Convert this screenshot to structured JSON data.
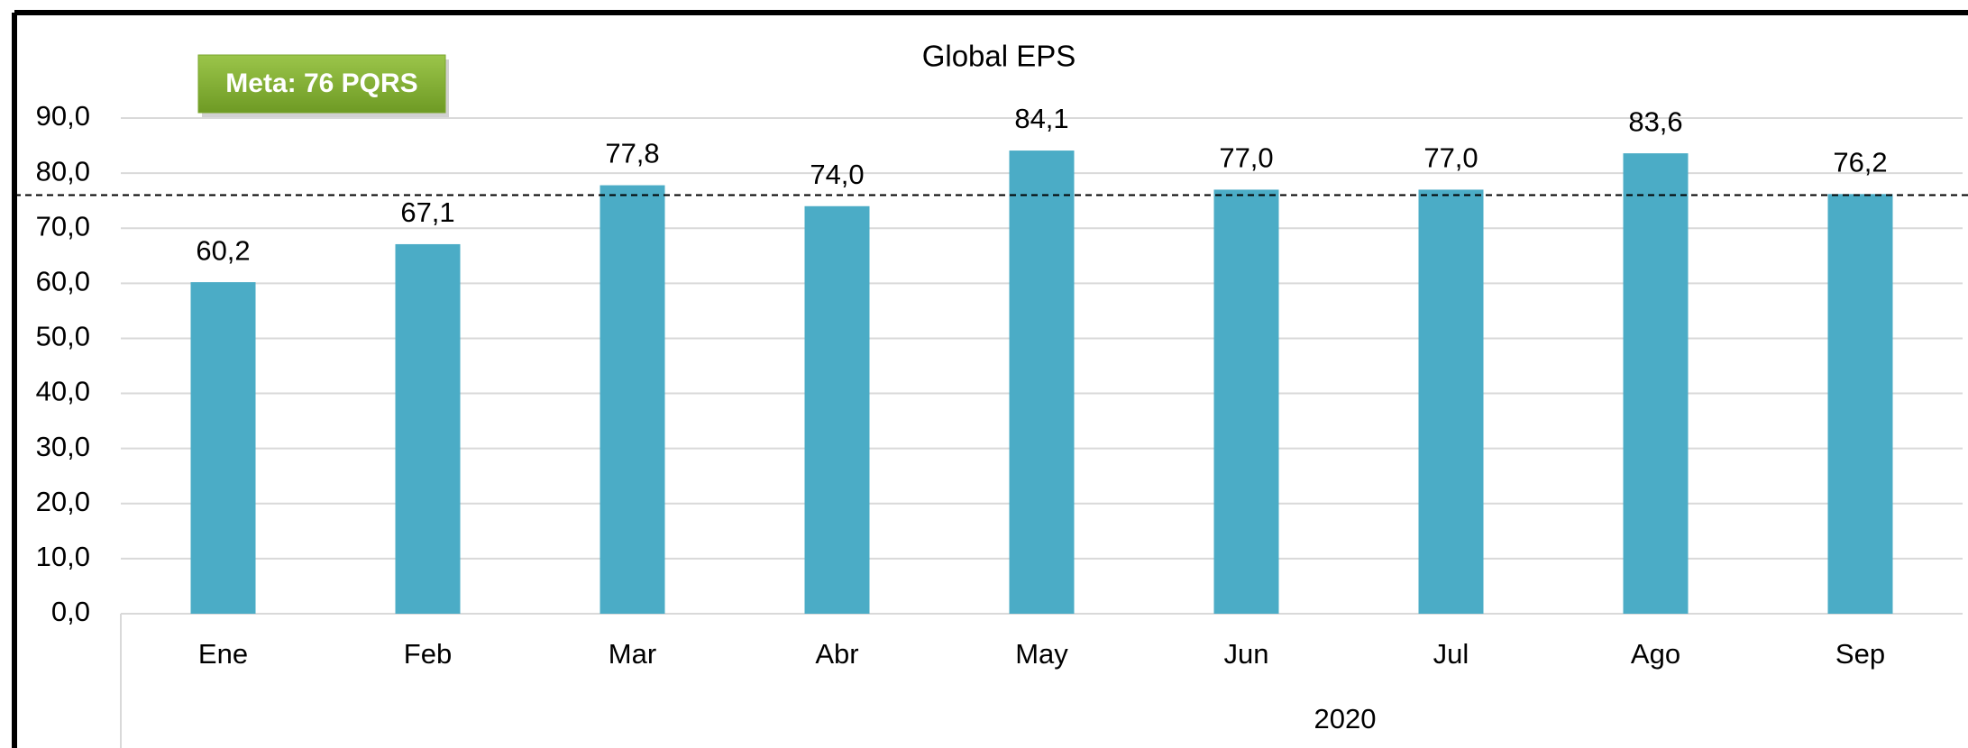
{
  "chart_data": {
    "type": "bar",
    "title": "Global EPS",
    "categories": [
      "Ene",
      "Feb",
      "Mar",
      "Abr",
      "May",
      "Jun",
      "Jul",
      "Ago",
      "Sep"
    ],
    "values": [
      60.2,
      67.1,
      77.8,
      74.0,
      84.1,
      77.0,
      77.0,
      83.6,
      76.2
    ],
    "value_labels": [
      "60,2",
      "67,1",
      "77,8",
      "74,0",
      "84,1",
      "77,0",
      "77,0",
      "83,6",
      "76,2"
    ],
    "color": "#4bacc6",
    "x_group_label": "2020",
    "ylim": [
      0,
      90
    ],
    "yticks": [
      {
        "value": 0,
        "label": "0,0"
      },
      {
        "value": 10,
        "label": "10,0"
      },
      {
        "value": 20,
        "label": "20,0"
      },
      {
        "value": 30,
        "label": "30,0"
      },
      {
        "value": 40,
        "label": "40,0"
      },
      {
        "value": 50,
        "label": "50,0"
      },
      {
        "value": 60,
        "label": "60,0"
      },
      {
        "value": 70,
        "label": "70,0"
      },
      {
        "value": 80,
        "label": "80,0"
      },
      {
        "value": 90,
        "label": "90,0"
      }
    ],
    "grid": true,
    "target_line": {
      "value": 76,
      "label": "Meta: 76 PQRS"
    }
  }
}
